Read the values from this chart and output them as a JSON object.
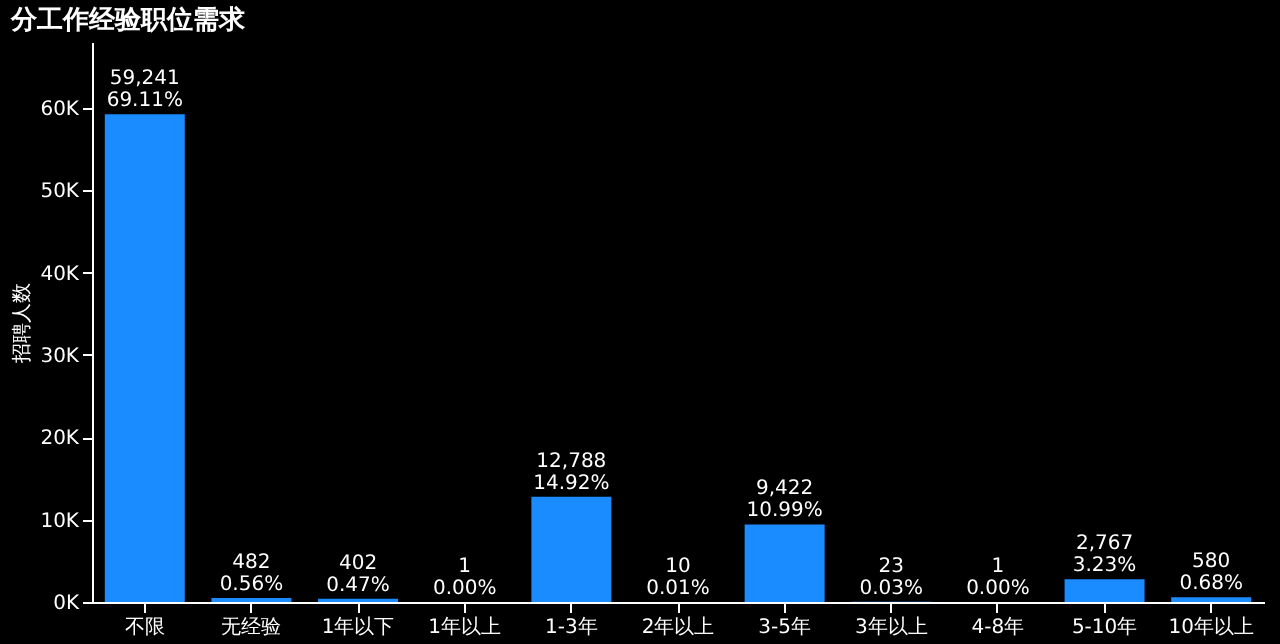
{
  "chart_data": {
    "type": "bar",
    "title": "分工作经验职位需求",
    "ylabel": "招聘人数",
    "categories": [
      "不限",
      "无经验",
      "1年以下",
      "1年以上",
      "1-3年",
      "2年以上",
      "3-5年",
      "3年以上",
      "4-8年",
      "5-10年",
      "10年以上"
    ],
    "values": [
      59241,
      482,
      402,
      1,
      12788,
      10,
      9422,
      23,
      1,
      2767,
      580
    ],
    "value_labels": [
      "59,241\n69.11%",
      "482\n0.56%",
      "402\n0.47%",
      "1\n0.00%",
      "12,788\n14.92%",
      "10\n0.01%",
      "9,422\n10.99%",
      "23\n0.03%",
      "1\n0.00%",
      "2,767\n3.23%",
      "580\n0.68%"
    ],
    "color": "#1a8cff",
    "ylim": [
      0,
      68000
    ],
    "yticks": [
      {
        "value": 0,
        "label": "0K"
      },
      {
        "value": 10000,
        "label": "10K"
      },
      {
        "value": 20000,
        "label": "20K"
      },
      {
        "value": 30000,
        "label": "30K"
      },
      {
        "value": 40000,
        "label": "40K"
      },
      {
        "value": 50000,
        "label": "50K"
      },
      {
        "value": 60000,
        "label": "60K"
      }
    ],
    "grid": false
  }
}
